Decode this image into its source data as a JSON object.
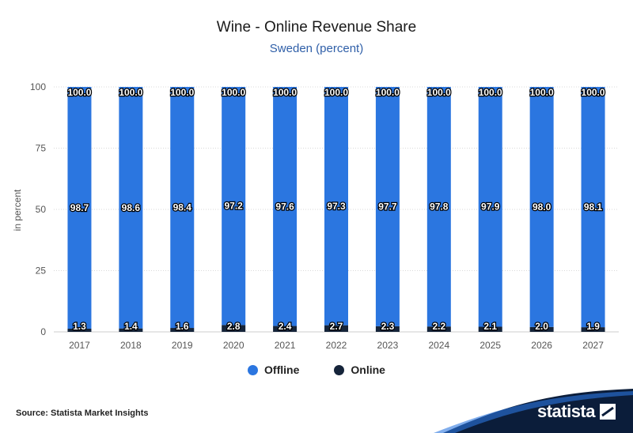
{
  "header": {
    "title": "Wine - Online Revenue Share",
    "subtitle": "Sweden (percent)"
  },
  "chart_data": {
    "type": "bar",
    "stacked": true,
    "title": "Wine - Online Revenue Share",
    "subtitle": "Sweden (percent)",
    "xlabel": "",
    "ylabel": "in percent",
    "ylim": [
      0,
      100
    ],
    "yticks": [
      0,
      25,
      50,
      75,
      100
    ],
    "grid": true,
    "legend_position": "bottom",
    "categories": [
      "2017",
      "2018",
      "2019",
      "2020",
      "2021",
      "2022",
      "2023",
      "2024",
      "2025",
      "2026",
      "2027"
    ],
    "series": [
      {
        "name": "Offline",
        "color": "#2b76e0",
        "values": [
          98.7,
          98.6,
          98.4,
          97.2,
          97.6,
          97.3,
          97.7,
          97.8,
          97.9,
          98.0,
          98.1
        ],
        "labels": [
          "98.7",
          "98.6",
          "98.4",
          "97.2",
          "97.6",
          "97.3",
          "97.7",
          "97.8",
          "97.9",
          "98.0",
          "98.1"
        ]
      },
      {
        "name": "Online",
        "color": "#15243a",
        "values": [
          1.3,
          1.4,
          1.6,
          2.8,
          2.4,
          2.7,
          2.3,
          2.2,
          2.1,
          2.0,
          1.9
        ],
        "labels": [
          "1.3",
          "1.4",
          "1.6",
          "2.8",
          "2.4",
          "2.7",
          "2.3",
          "2.2",
          "2.1",
          "2.0",
          "1.9"
        ]
      }
    ],
    "totals": [
      "100.0",
      "100.0",
      "100.0",
      "100.0",
      "100.0",
      "100.0",
      "100.0",
      "100.0",
      "100.0",
      "100.0",
      "100.0"
    ]
  },
  "legend": [
    {
      "label": "Offline",
      "color": "#2b76e0"
    },
    {
      "label": "Online",
      "color": "#15243a"
    }
  ],
  "footer": {
    "source": "Source: Statista Market Insights",
    "brand": "statista",
    "brand_icon": "statista-logo-icon",
    "band_color": "#0b1d3a"
  }
}
